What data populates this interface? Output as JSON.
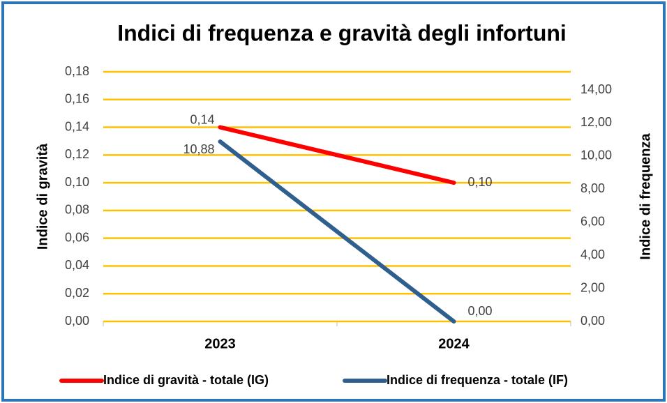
{
  "chart_data": {
    "type": "line",
    "title": "Indici di frequenza e gravità degli infortuni",
    "categories": [
      "2023",
      "2024"
    ],
    "series": [
      {
        "name": "Indice di gravità - totale (IG)",
        "color": "#ff0000",
        "values": [
          0.14,
          0.1
        ],
        "value_labels": [
          "0,14",
          "0,10"
        ]
      },
      {
        "name": "Indice di frequenza - totale (IF)",
        "color": "#2e5f8f",
        "values": [
          10.88,
          0
        ],
        "value_labels": [
          "10,88",
          "0,00"
        ],
        "axis": "y2"
      }
    ],
    "ylabel": "Indice di gravità",
    "y2label": "Indice di frequenza",
    "ylim": [
      0,
      0.18
    ],
    "yticks": [
      {
        "value": 0,
        "label": "0,00"
      },
      {
        "value": 0.02,
        "label": "0,02"
      },
      {
        "value": 0.04,
        "label": "0,04"
      },
      {
        "value": 0.06,
        "label": "0,06"
      },
      {
        "value": 0.08,
        "label": "0,08"
      },
      {
        "value": 0.1,
        "label": "0,10"
      },
      {
        "value": 0.12,
        "label": "0,12"
      },
      {
        "value": 0.14,
        "label": "0,14"
      },
      {
        "value": 0.16,
        "label": "0,16"
      },
      {
        "value": 0.18,
        "label": "0,18"
      }
    ],
    "y2lim": [
      0,
      15.1
    ],
    "y2ticks": [
      {
        "value": 0,
        "label": "0,00"
      },
      {
        "value": 2,
        "label": "2,00"
      },
      {
        "value": 4,
        "label": "4,00"
      },
      {
        "value": 6,
        "label": "6,00"
      },
      {
        "value": 8,
        "label": "8,00"
      },
      {
        "value": 10,
        "label": "10,00"
      },
      {
        "value": 12,
        "label": "12,00"
      },
      {
        "value": 14,
        "label": "14,00"
      }
    ],
    "grid": true,
    "grid_color": "#ffc000",
    "legend": "bottom"
  }
}
